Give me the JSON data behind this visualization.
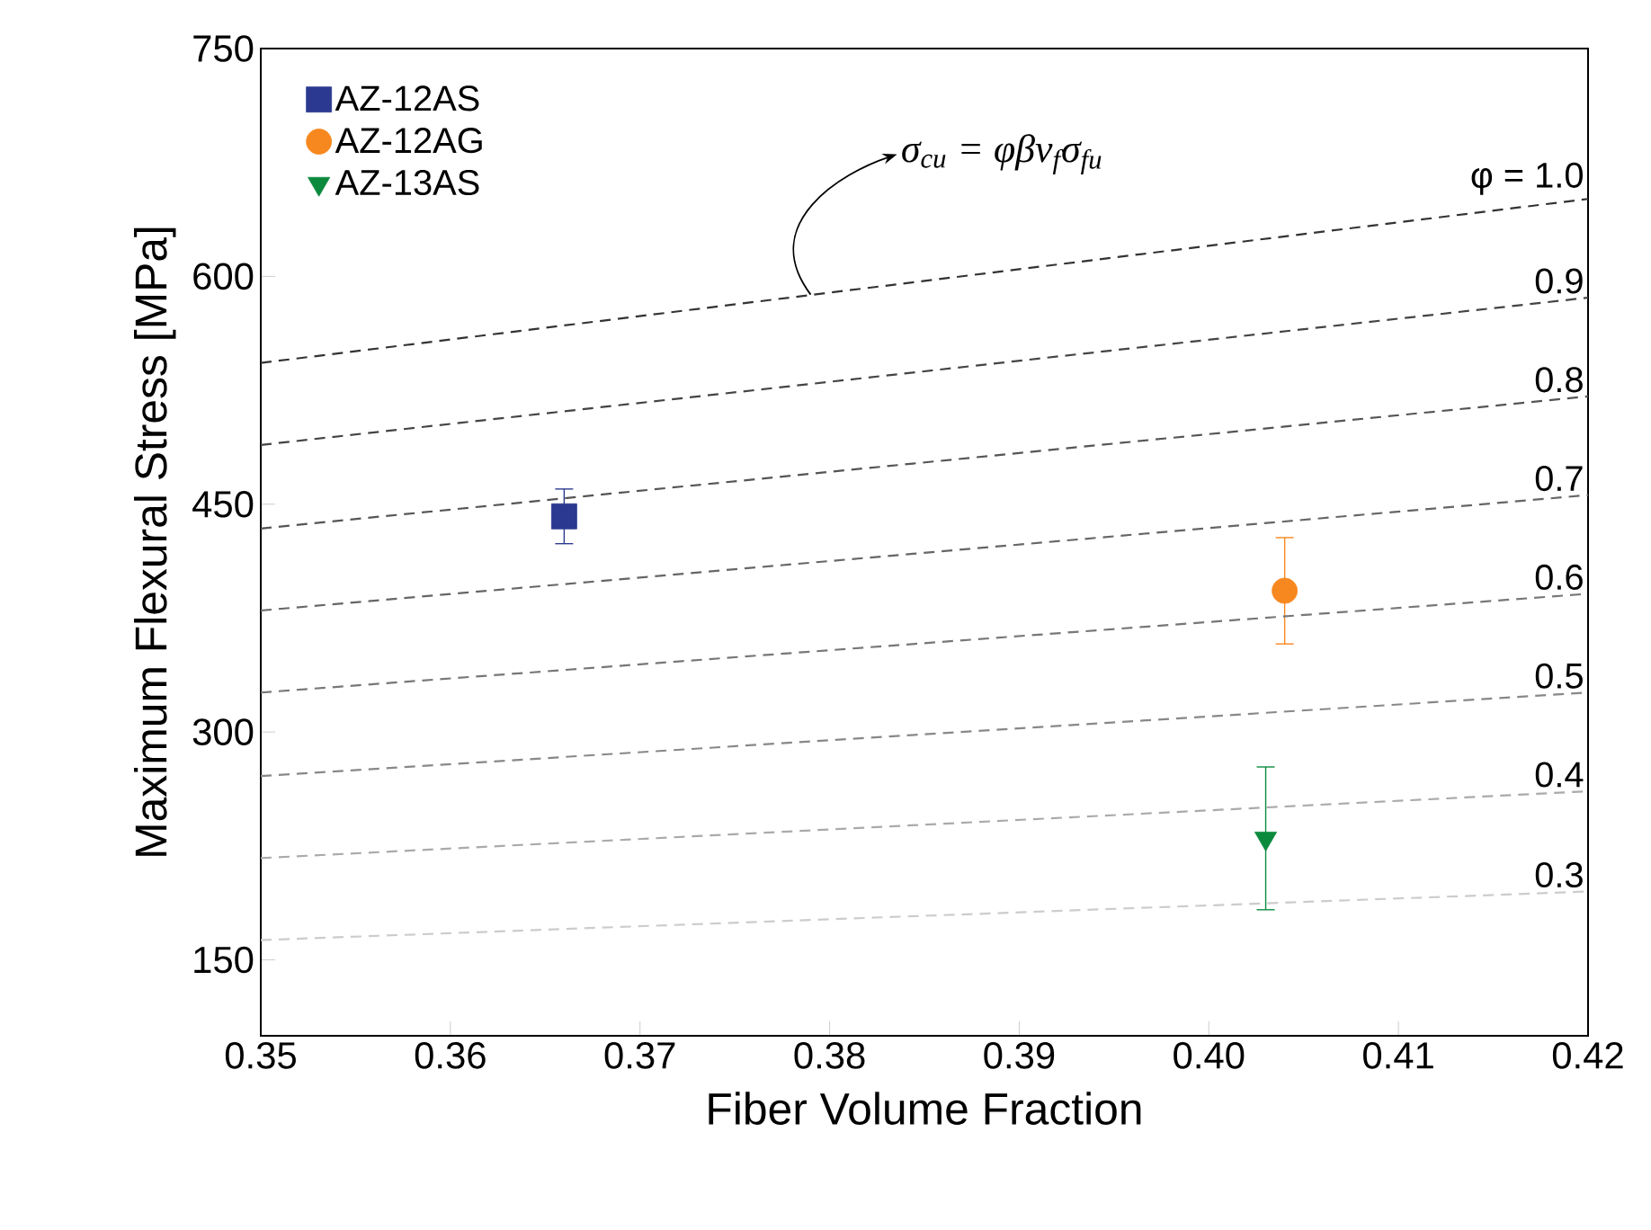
{
  "chart_data": {
    "type": "scatter",
    "xlabel": "Fiber Volume Fraction",
    "ylabel": "Maximum Flexural Stress [MPa]",
    "xlim": [
      0.35,
      0.42
    ],
    "xticks": [
      0.35,
      0.36,
      0.37,
      0.38,
      0.39,
      {
        "value": 0.4,
        "label": "0.40"
      },
      0.41,
      0.42
    ],
    "ylim": [
      100,
      750
    ],
    "yticks": [
      150,
      300,
      450,
      600,
      750
    ],
    "legend": "top left",
    "annotations": [
      {
        "text": "σ$_{cu}$ = φβv$_{f}$σ$_{fu}$",
        "x": 0.379,
        "y": 588
      }
    ],
    "series": [
      {
        "name": "AZ-12AS",
        "marker": "square",
        "color": "#2b3990",
        "x": [
          0.366
        ],
        "values": [
          442
        ],
        "errors": [
          18
        ]
      },
      {
        "name": "AZ-12AG",
        "marker": "circle",
        "color": "#f7881f",
        "x": [
          0.404
        ],
        "values": [
          393
        ],
        "errors": [
          35
        ]
      },
      {
        "name": "AZ-13AS",
        "marker": "triangle",
        "color": "#0b8a3e",
        "x": [
          0.403
        ],
        "values": [
          230
        ],
        "errors": [
          47
        ]
      },
      {
        "name": "φ = 1.0",
        "type": "line",
        "line_style": "dashed",
        "marker": "none",
        "color": "#333333",
        "x": [
          0.35,
          0.42
        ],
        "values": [
          543,
          651
        ]
      },
      {
        "name": "0.9",
        "type": "line",
        "line_style": "dashed",
        "marker": "none",
        "color": "#444444",
        "x": [
          0.35,
          0.42
        ],
        "values": [
          489,
          586
        ]
      },
      {
        "name": "0.8",
        "type": "line",
        "line_style": "dashed",
        "marker": "none",
        "color": "#555555",
        "x": [
          0.35,
          0.42
        ],
        "values": [
          434,
          521
        ]
      },
      {
        "name": "0.7",
        "type": "line",
        "line_style": "dashed",
        "marker": "none",
        "color": "#666666",
        "x": [
          0.35,
          0.42
        ],
        "values": [
          380,
          456
        ]
      },
      {
        "name": "0.6",
        "type": "line",
        "line_style": "dashed",
        "marker": "none",
        "color": "#777777",
        "x": [
          0.35,
          0.42
        ],
        "values": [
          326,
          391
        ]
      },
      {
        "name": "0.5",
        "type": "line",
        "line_style": "dashed",
        "marker": "none",
        "color": "#888888",
        "x": [
          0.35,
          0.42
        ],
        "values": [
          271,
          326
        ]
      },
      {
        "name": "0.4",
        "type": "line",
        "line_style": "dashed",
        "marker": "none",
        "color": "#aaaaaa",
        "x": [
          0.35,
          0.42
        ],
        "values": [
          217,
          261
        ]
      },
      {
        "name": "0.3",
        "type": "line",
        "line_style": "dashed",
        "marker": "none",
        "color": "#cccccc",
        "x": [
          0.35,
          0.42
        ],
        "values": [
          163,
          195
        ]
      }
    ]
  }
}
